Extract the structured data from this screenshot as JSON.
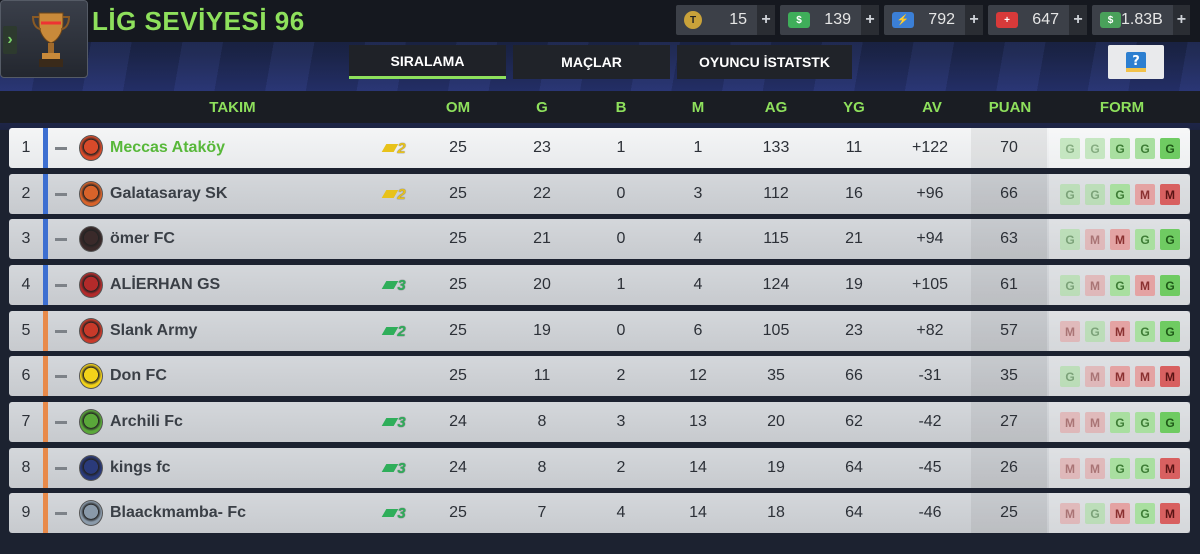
{
  "header": {
    "title": "LİG SEVİYESİ 96",
    "currencies": [
      {
        "name": "tokens",
        "icon": "token-icon",
        "value": "15",
        "color": "#c9a23a"
      },
      {
        "name": "money",
        "icon": "money-icon",
        "value": "139",
        "color": "#3fae5a"
      },
      {
        "name": "energy",
        "icon": "energy-icon",
        "value": "792",
        "color": "#3b7fd6"
      },
      {
        "name": "health",
        "icon": "health-icon",
        "value": "647",
        "color": "#d83a3a"
      },
      {
        "name": "cash",
        "icon": "cash-icon",
        "value": "1.83B",
        "color": "#49a05a"
      }
    ],
    "plus_label": "+"
  },
  "tabs": [
    {
      "label": "SIRALAMA",
      "active": true
    },
    {
      "label": "MAÇLAR",
      "active": false
    },
    {
      "label": "OYUNCU İSTATSTK",
      "active": false
    }
  ],
  "table": {
    "columns": [
      "TAKIM",
      "OM",
      "G",
      "B",
      "M",
      "AG",
      "YG",
      "AV",
      "PUAN",
      "FORM"
    ],
    "rows": [
      {
        "rank": "1",
        "team": "Meccas Ataköy",
        "badge": "2",
        "badge_color": "#e8c21a",
        "stripe": "#3d6fd1",
        "om": "25",
        "g": "23",
        "b": "1",
        "m": "1",
        "ag": "133",
        "yg": "11",
        "av": "+122",
        "puan": "70",
        "form": [
          "G",
          "G",
          "G",
          "G",
          "G"
        ],
        "highlight": true
      },
      {
        "rank": "2",
        "team": "Galatasaray SK",
        "badge": "2",
        "badge_color": "#e8c21a",
        "stripe": "#3d6fd1",
        "om": "25",
        "g": "22",
        "b": "0",
        "m": "3",
        "ag": "112",
        "yg": "16",
        "av": "+96",
        "puan": "66",
        "form": [
          "G",
          "G",
          "G",
          "M",
          "M"
        ]
      },
      {
        "rank": "3",
        "team": "ömer FC",
        "badge": "",
        "badge_color": "",
        "stripe": "#3d6fd1",
        "om": "25",
        "g": "21",
        "b": "0",
        "m": "4",
        "ag": "115",
        "yg": "21",
        "av": "+94",
        "puan": "63",
        "form": [
          "G",
          "M",
          "M",
          "G",
          "G"
        ]
      },
      {
        "rank": "4",
        "team": "ALİERHAN GS",
        "badge": "3",
        "badge_color": "#2fae5a",
        "stripe": "#3d6fd1",
        "om": "25",
        "g": "20",
        "b": "1",
        "m": "4",
        "ag": "124",
        "yg": "19",
        "av": "+105",
        "puan": "61",
        "form": [
          "G",
          "M",
          "G",
          "M",
          "G"
        ]
      },
      {
        "rank": "5",
        "team": "Slank Army",
        "badge": "2",
        "badge_color": "#2fae5a",
        "stripe": "#e88a4a",
        "om": "25",
        "g": "19",
        "b": "0",
        "m": "6",
        "ag": "105",
        "yg": "23",
        "av": "+82",
        "puan": "57",
        "form": [
          "M",
          "G",
          "M",
          "G",
          "G"
        ]
      },
      {
        "rank": "6",
        "team": "Don FC",
        "badge": "",
        "badge_color": "",
        "stripe": "#e88a4a",
        "om": "25",
        "g": "11",
        "b": "2",
        "m": "12",
        "ag": "35",
        "yg": "66",
        "av": "-31",
        "puan": "35",
        "form": [
          "G",
          "M",
          "M",
          "M",
          "M"
        ]
      },
      {
        "rank": "7",
        "team": "Archili Fc",
        "badge": "3",
        "badge_color": "#2fae5a",
        "stripe": "#e88a4a",
        "om": "24",
        "g": "8",
        "b": "3",
        "m": "13",
        "ag": "20",
        "yg": "62",
        "av": "-42",
        "puan": "27",
        "form": [
          "M",
          "M",
          "G",
          "G",
          "G"
        ]
      },
      {
        "rank": "8",
        "team": "kings fc",
        "badge": "3",
        "badge_color": "#2fae5a",
        "stripe": "#e88a4a",
        "om": "24",
        "g": "8",
        "b": "2",
        "m": "14",
        "ag": "19",
        "yg": "64",
        "av": "-45",
        "puan": "26",
        "form": [
          "M",
          "M",
          "G",
          "G",
          "M"
        ]
      },
      {
        "rank": "9",
        "team": "Blaackmamba- Fc",
        "badge": "3",
        "badge_color": "#2fae5a",
        "stripe": "#e88a4a",
        "om": "25",
        "g": "7",
        "b": "4",
        "m": "14",
        "ag": "18",
        "yg": "64",
        "av": "-46",
        "puan": "25",
        "form": [
          "M",
          "G",
          "M",
          "G",
          "M"
        ]
      }
    ]
  }
}
